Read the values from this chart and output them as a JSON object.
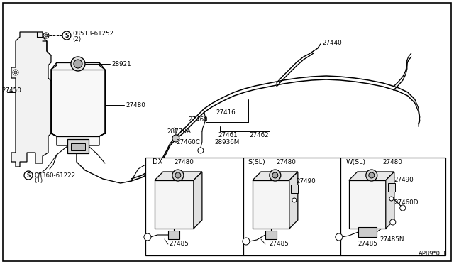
{
  "bg_color": "#ffffff",
  "line_color": "#000000",
  "fig_width": 6.4,
  "fig_height": 3.72,
  "dpi": 100,
  "labels": {
    "s1_circle": "S",
    "s1_text": "08513-61252\n(2)",
    "s2_circle": "S",
    "s2_text": "08360-61222\n(1)",
    "27450": "27450",
    "27480_main": "27480",
    "28921": "28921",
    "27440": "27440",
    "28770A": "28770A",
    "27460": "27460",
    "27416": "27416",
    "27461": "27461",
    "27462": "27462",
    "27460C": "27460C",
    "28936M": "28936M",
    "dx": "DX",
    "ssl": "S(SL)",
    "wsl": "W(SL)",
    "27480_dx": "27480",
    "27480_ssl": "27480",
    "27480_wsl": "27480",
    "27490_ssl": "27490",
    "27490_wsl": "27490",
    "27485_dx": "27485",
    "27485_ssl": "27485",
    "27485_wsl": "27485",
    "27485N": "27485N",
    "27460D": "27460D",
    "ap89": "AP89*0·3"
  }
}
